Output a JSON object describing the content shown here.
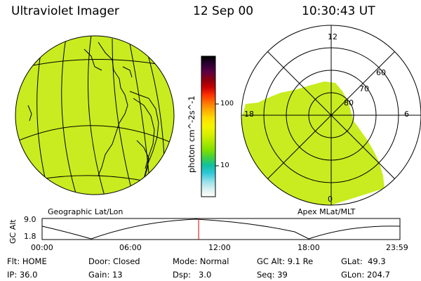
{
  "header": {
    "instrument": "Ultraviolet Imager",
    "date": "12 Sep 00",
    "time": "10:30:43 UT"
  },
  "geo_panel": {
    "caption": "Geographic Lat/Lon"
  },
  "polar_panel": {
    "caption": "Apex MLat/MLT",
    "mlt_labels": {
      "top": "12",
      "left": "18",
      "right": "6",
      "bottom": "0"
    },
    "lat_labels": [
      "60",
      "70",
      "80"
    ]
  },
  "colorbar": {
    "unit_label": "photon cm^-2s^-1",
    "ticks": [
      "100",
      "10"
    ],
    "colors": [
      "#000000",
      "#2a0030",
      "#5c0044",
      "#8a0010",
      "#c80000",
      "#ff3300",
      "#ff7700",
      "#ffb000",
      "#ffe000",
      "#f4f400",
      "#d8f000",
      "#b0e800",
      "#80e000",
      "#40d040",
      "#10c0a0",
      "#30c8d8",
      "#90e0e8",
      "#d8f0f0",
      "#ffffff"
    ],
    "image_fill": "#c8ec20"
  },
  "altitude_plot": {
    "ylabel": "GC Alt",
    "ymax": "9.0",
    "ymin": "1.8",
    "xticks": [
      "00:00",
      "06:00",
      "12:00",
      "18:00",
      "23:59"
    ],
    "current_time_marker_color": "#cc0000",
    "current_time_fraction": 0.4375
  },
  "info": {
    "flt": {
      "label": "Flt:",
      "value": "HOME"
    },
    "ip": {
      "label": "IP:",
      "value": "36.0"
    },
    "door": {
      "label": "Door:",
      "value": "Closed"
    },
    "gain": {
      "label": "Gain:",
      "value": "13"
    },
    "mode": {
      "label": "Mode:",
      "value": "Normal"
    },
    "dsp": {
      "label": "Dsp:",
      "value": "3.0"
    },
    "gcalt": {
      "label": "GC Alt:",
      "value": "9.1 Re"
    },
    "seq": {
      "label": "Seq:",
      "value": "39"
    },
    "glat": {
      "label": "GLat:",
      "value": "49.3"
    },
    "glon": {
      "label": "GLon:",
      "value": "204.7"
    }
  }
}
